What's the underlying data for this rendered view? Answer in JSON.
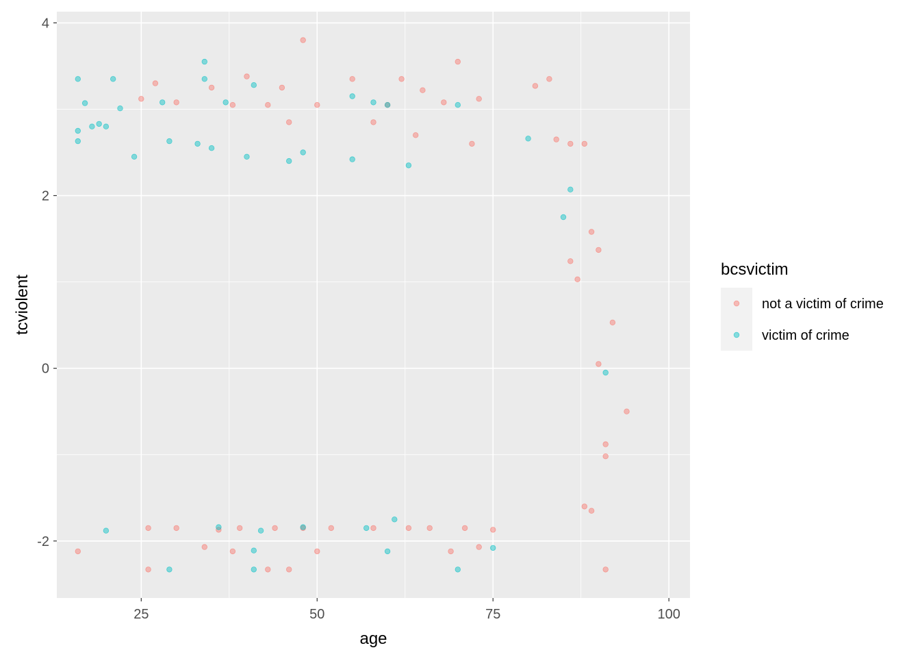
{
  "chart_data": {
    "type": "scatter",
    "xlabel": "age",
    "ylabel": "tcviolent",
    "xlim": [
      13,
      103
    ],
    "ylim": [
      -2.66,
      4.13
    ],
    "x_ticks": [
      25,
      50,
      75,
      100
    ],
    "x_tick_labels": [
      "25",
      "50",
      "75",
      "100"
    ],
    "x_minor_ticks": [
      12.5,
      37.5,
      62.5,
      87.5
    ],
    "y_ticks": [
      -2,
      0,
      2,
      4
    ],
    "y_tick_labels": [
      "-2",
      "0",
      "2",
      "4"
    ],
    "y_minor_ticks": [
      -1,
      1,
      3
    ],
    "grid": true,
    "legend": {
      "title": "bcsvictim",
      "position": "right",
      "entries": [
        {
          "label": "not a victim of crime",
          "color": "#F8766D"
        },
        {
          "label": "victim of crime",
          "color": "#00BFC4"
        }
      ]
    },
    "point_alpha": 0.45,
    "series": [
      {
        "name": "not a victim of crime",
        "color": "#F8766D",
        "points": [
          [
            16,
            -2.12
          ],
          [
            26,
            -2.33
          ],
          [
            38,
            -2.12
          ],
          [
            43,
            -2.33
          ],
          [
            46,
            -2.33
          ],
          [
            50,
            -2.12
          ],
          [
            69,
            -2.12
          ],
          [
            73,
            -2.07
          ],
          [
            91,
            -2.33
          ],
          [
            34,
            -2.07
          ],
          [
            26,
            -1.85
          ],
          [
            30,
            -1.85
          ],
          [
            36,
            -1.87
          ],
          [
            39,
            -1.85
          ],
          [
            44,
            -1.85
          ],
          [
            48,
            -1.85
          ],
          [
            52,
            -1.85
          ],
          [
            58,
            -1.85
          ],
          [
            63,
            -1.85
          ],
          [
            66,
            -1.85
          ],
          [
            71,
            -1.85
          ],
          [
            75,
            -1.87
          ],
          [
            48,
            3.8
          ],
          [
            70,
            3.55
          ],
          [
            40,
            3.38
          ],
          [
            55,
            3.35
          ],
          [
            62,
            3.35
          ],
          [
            83,
            3.35
          ],
          [
            81,
            3.27
          ],
          [
            27,
            3.3
          ],
          [
            35,
            3.25
          ],
          [
            45,
            3.25
          ],
          [
            65,
            3.22
          ],
          [
            73,
            3.12
          ],
          [
            25,
            3.12
          ],
          [
            30,
            3.08
          ],
          [
            38,
            3.05
          ],
          [
            43,
            3.05
          ],
          [
            50,
            3.05
          ],
          [
            60,
            3.05
          ],
          [
            68,
            3.08
          ],
          [
            46,
            2.85
          ],
          [
            58,
            2.85
          ],
          [
            64,
            2.7
          ],
          [
            72,
            2.6
          ],
          [
            88,
            2.6
          ],
          [
            86,
            2.6
          ],
          [
            84,
            2.65
          ],
          [
            90,
            1.37
          ],
          [
            89,
            1.58
          ],
          [
            87,
            1.03
          ],
          [
            86,
            1.24
          ],
          [
            92,
            0.53
          ],
          [
            94,
            -0.5
          ],
          [
            90,
            0.05
          ],
          [
            91,
            -0.88
          ],
          [
            88,
            -1.6
          ],
          [
            91,
            -1.02
          ],
          [
            89,
            -1.65
          ]
        ]
      },
      {
        "name": "victim of crime",
        "color": "#00BFC4",
        "points": [
          [
            34,
            3.55
          ],
          [
            16,
            3.35
          ],
          [
            21,
            3.35
          ],
          [
            34,
            3.35
          ],
          [
            17,
            3.07
          ],
          [
            22,
            3.01
          ],
          [
            28,
            3.08
          ],
          [
            37,
            3.08
          ],
          [
            41,
            3.28
          ],
          [
            55,
            3.15
          ],
          [
            58,
            3.08
          ],
          [
            60,
            3.05
          ],
          [
            70,
            3.05
          ],
          [
            16,
            2.63
          ],
          [
            19,
            2.83
          ],
          [
            20,
            2.8
          ],
          [
            18,
            2.8
          ],
          [
            16,
            2.75
          ],
          [
            29,
            2.63
          ],
          [
            33,
            2.6
          ],
          [
            35,
            2.55
          ],
          [
            48,
            2.5
          ],
          [
            80,
            2.66
          ],
          [
            86,
            2.07
          ],
          [
            24,
            2.45
          ],
          [
            40,
            2.45
          ],
          [
            46,
            2.4
          ],
          [
            55,
            2.42
          ],
          [
            63,
            2.35
          ],
          [
            85,
            1.75
          ],
          [
            91,
            -0.05
          ],
          [
            29,
            -2.33
          ],
          [
            41,
            -2.33
          ],
          [
            70,
            -2.33
          ],
          [
            41,
            -2.11
          ],
          [
            60,
            -2.12
          ],
          [
            75,
            -2.08
          ],
          [
            20,
            -1.88
          ],
          [
            42,
            -1.88
          ],
          [
            57,
            -1.85
          ],
          [
            61,
            -1.75
          ],
          [
            36,
            -1.84
          ],
          [
            48,
            -1.84
          ]
        ]
      }
    ]
  }
}
